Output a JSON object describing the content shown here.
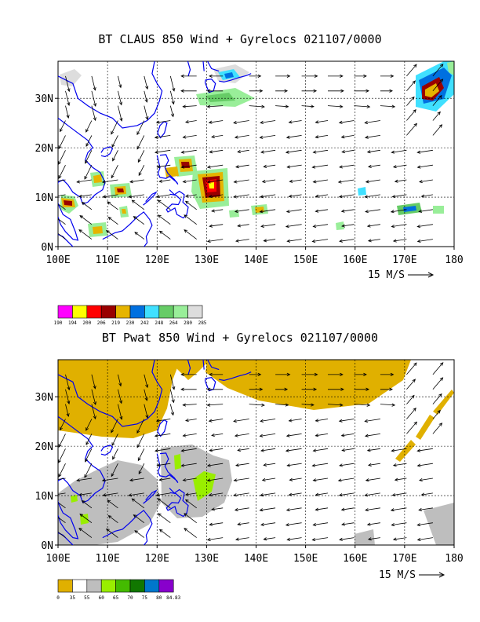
{
  "top_panel": {
    "title": "BT CLAUS 850 Wind + Gyrelocs 021107/0000",
    "x_ticks": [
      "100E",
      "110E",
      "120E",
      "130E",
      "140E",
      "150E",
      "160E",
      "170E",
      "180"
    ],
    "y_ticks": [
      "0N",
      "10N",
      "20N",
      "30N"
    ],
    "vector_reference": "15 M/S",
    "colorbar": {
      "labels": [
        "190",
        "194",
        "200",
        "206",
        "219",
        "230",
        "242",
        "248",
        "264",
        "280",
        "285"
      ],
      "colors": [
        "#ff00ff",
        "#ffff00",
        "#ff0000",
        "#990000",
        "#e6b400",
        "#0070e0",
        "#40e0ff",
        "#66cc66",
        "#99ee99",
        "#dddddd"
      ]
    }
  },
  "bottom_panel": {
    "title": "BT Pwat 850 Wind + Gyrelocs 021107/0000",
    "x_ticks": [
      "100E",
      "110E",
      "120E",
      "130E",
      "140E",
      "150E",
      "160E",
      "170E",
      "180"
    ],
    "y_ticks": [
      "0N",
      "10N",
      "20N",
      "30N"
    ],
    "vector_reference": "15 M/S",
    "colorbar": {
      "labels": [
        "0",
        "35",
        "55",
        "60",
        "65",
        "70",
        "75",
        "80",
        "84.83"
      ],
      "colors": [
        "#e0b000",
        "#ffffff",
        "#bebebe",
        "#99ee00",
        "#44bb00",
        "#117700",
        "#0077cc",
        "#8800cc"
      ]
    }
  }
}
